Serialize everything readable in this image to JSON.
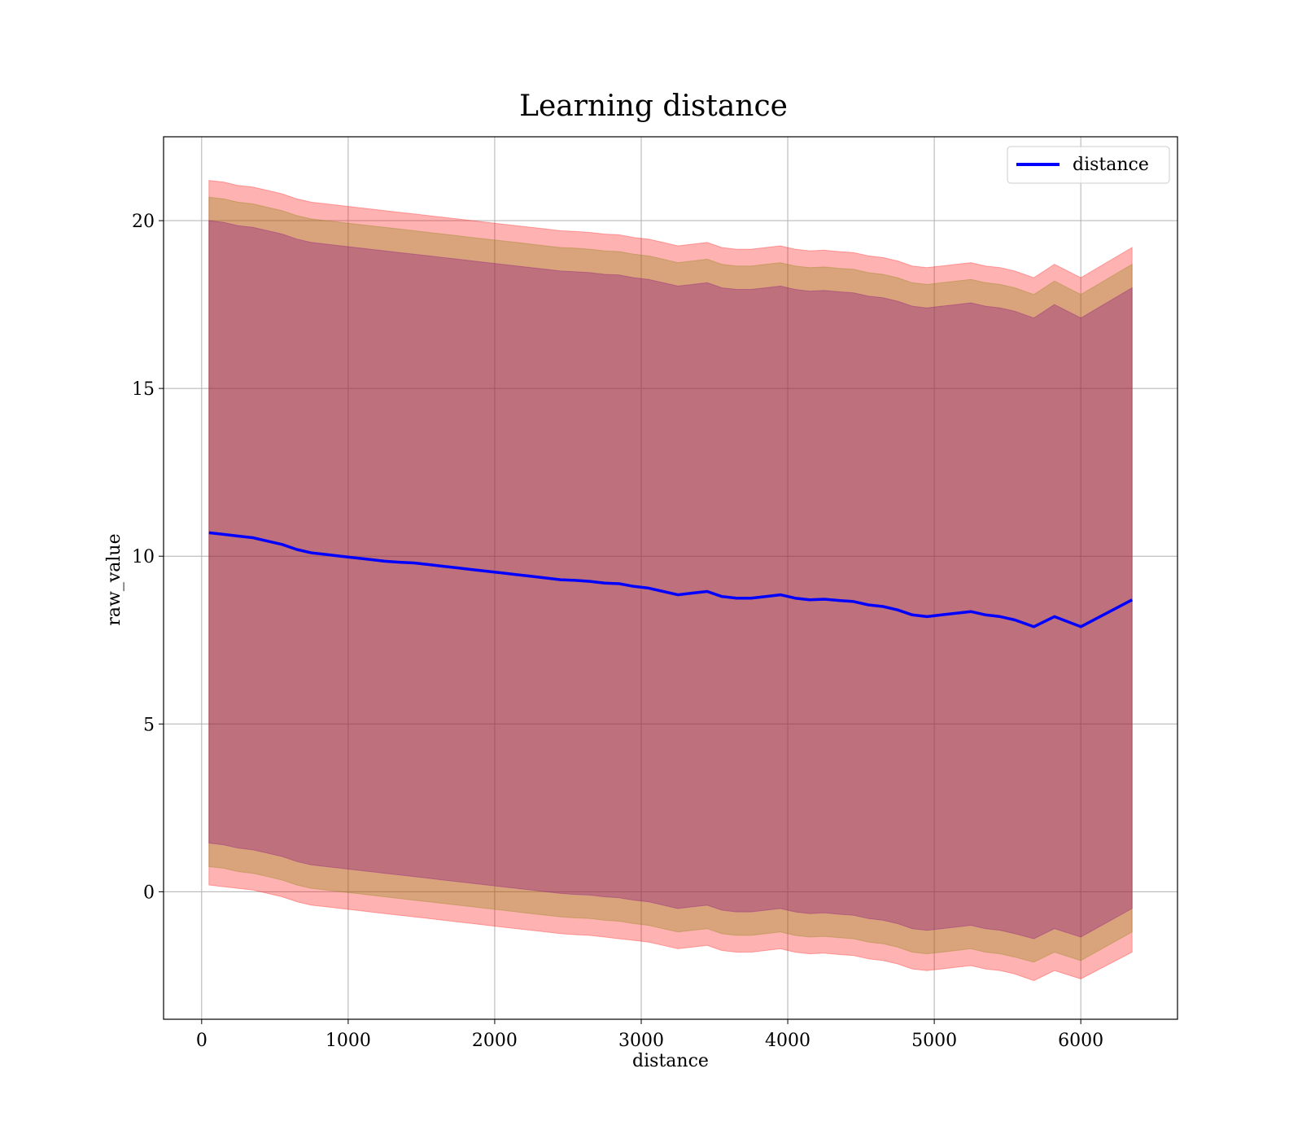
{
  "chart_data": {
    "type": "line",
    "title": "Learning distance",
    "xlabel": "distance",
    "ylabel": "raw_value",
    "xlim": [
      -260,
      6660
    ],
    "ylim": [
      -3.8,
      22.5
    ],
    "x_ticks": [
      0,
      1000,
      2000,
      3000,
      4000,
      5000,
      6000
    ],
    "y_ticks": [
      0,
      5,
      10,
      15,
      20
    ],
    "grid": true,
    "legend_position": "top-right",
    "series": [
      {
        "name": "distance",
        "color": "#0000ff",
        "x": [
          50,
          150,
          250,
          350,
          450,
          550,
          650,
          750,
          850,
          950,
          1050,
          1150,
          1250,
          1350,
          1450,
          1550,
          1650,
          1750,
          1850,
          1950,
          2050,
          2150,
          2250,
          2350,
          2450,
          2550,
          2650,
          2750,
          2850,
          2950,
          3050,
          3150,
          3250,
          3350,
          3450,
          3550,
          3650,
          3750,
          3850,
          3950,
          4050,
          4150,
          4250,
          4350,
          4450,
          4550,
          4650,
          4750,
          4850,
          4950,
          5050,
          5150,
          5250,
          5350,
          5450,
          5550,
          5680,
          5820,
          6000,
          6350
        ],
        "y": [
          10.7,
          10.65,
          10.6,
          10.55,
          10.45,
          10.35,
          10.2,
          10.1,
          10.05,
          10.0,
          9.95,
          9.9,
          9.85,
          9.82,
          9.8,
          9.75,
          9.7,
          9.65,
          9.6,
          9.55,
          9.5,
          9.45,
          9.4,
          9.35,
          9.3,
          9.28,
          9.25,
          9.2,
          9.18,
          9.1,
          9.05,
          8.95,
          8.85,
          8.9,
          8.95,
          8.8,
          8.75,
          8.75,
          8.8,
          8.85,
          8.75,
          8.7,
          8.72,
          8.68,
          8.65,
          8.55,
          8.5,
          8.4,
          8.25,
          8.2,
          8.25,
          8.3,
          8.35,
          8.25,
          8.2,
          8.1,
          7.9,
          8.2,
          7.9,
          8.7
        ]
      }
    ],
    "bands": [
      {
        "color": "#ff0000",
        "opacity": 0.3,
        "upper": [
          21.2,
          21.15,
          21.05,
          21.0,
          20.9,
          20.8,
          20.65,
          20.55,
          20.5,
          20.45,
          20.4,
          20.35,
          20.3,
          20.25,
          20.2,
          20.15,
          20.1,
          20.05,
          20.0,
          19.95,
          19.9,
          19.85,
          19.8,
          19.75,
          19.7,
          19.68,
          19.65,
          19.6,
          19.58,
          19.5,
          19.45,
          19.35,
          19.25,
          19.3,
          19.35,
          19.2,
          19.15,
          19.15,
          19.2,
          19.25,
          19.15,
          19.1,
          19.12,
          19.08,
          19.05,
          18.95,
          18.9,
          18.8,
          18.65,
          18.6,
          18.65,
          18.7,
          18.75,
          18.65,
          18.6,
          18.5,
          18.3,
          18.7,
          18.3,
          19.2
        ],
        "lower": [
          0.2,
          0.15,
          0.1,
          0.05,
          -0.05,
          -0.15,
          -0.3,
          -0.4,
          -0.45,
          -0.5,
          -0.55,
          -0.6,
          -0.65,
          -0.7,
          -0.75,
          -0.8,
          -0.85,
          -0.9,
          -0.95,
          -1.0,
          -1.05,
          -1.1,
          -1.15,
          -1.2,
          -1.25,
          -1.28,
          -1.3,
          -1.35,
          -1.4,
          -1.45,
          -1.5,
          -1.6,
          -1.7,
          -1.65,
          -1.6,
          -1.75,
          -1.8,
          -1.8,
          -1.75,
          -1.7,
          -1.8,
          -1.85,
          -1.83,
          -1.87,
          -1.9,
          -2.0,
          -2.05,
          -2.15,
          -2.3,
          -2.35,
          -2.3,
          -2.25,
          -2.2,
          -2.3,
          -2.35,
          -2.45,
          -2.65,
          -2.35,
          -2.6,
          -1.8
        ]
      },
      {
        "color": "#808000",
        "opacity": 0.3,
        "upper": [
          20.7,
          20.65,
          20.55,
          20.5,
          20.4,
          20.3,
          20.15,
          20.05,
          20.0,
          19.95,
          19.9,
          19.85,
          19.8,
          19.75,
          19.7,
          19.65,
          19.6,
          19.55,
          19.5,
          19.45,
          19.4,
          19.35,
          19.3,
          19.25,
          19.2,
          19.18,
          19.15,
          19.1,
          19.08,
          19.0,
          18.95,
          18.85,
          18.75,
          18.8,
          18.85,
          18.7,
          18.65,
          18.65,
          18.7,
          18.75,
          18.65,
          18.6,
          18.62,
          18.58,
          18.55,
          18.45,
          18.4,
          18.3,
          18.15,
          18.1,
          18.15,
          18.2,
          18.25,
          18.15,
          18.1,
          18.0,
          17.8,
          18.2,
          17.8,
          18.7
        ],
        "lower": [
          0.75,
          0.7,
          0.6,
          0.55,
          0.45,
          0.35,
          0.2,
          0.1,
          0.05,
          0.0,
          -0.05,
          -0.1,
          -0.15,
          -0.2,
          -0.25,
          -0.3,
          -0.35,
          -0.4,
          -0.45,
          -0.5,
          -0.55,
          -0.6,
          -0.65,
          -0.7,
          -0.75,
          -0.78,
          -0.8,
          -0.85,
          -0.88,
          -0.95,
          -1.0,
          -1.1,
          -1.2,
          -1.15,
          -1.1,
          -1.25,
          -1.3,
          -1.3,
          -1.25,
          -1.2,
          -1.3,
          -1.35,
          -1.33,
          -1.37,
          -1.4,
          -1.5,
          -1.55,
          -1.65,
          -1.8,
          -1.85,
          -1.8,
          -1.75,
          -1.7,
          -1.8,
          -1.85,
          -1.95,
          -2.1,
          -1.8,
          -2.05,
          -1.2
        ]
      },
      {
        "color": "#800080",
        "opacity": 0.3,
        "upper": [
          20.0,
          19.95,
          19.85,
          19.8,
          19.7,
          19.6,
          19.45,
          19.35,
          19.3,
          19.25,
          19.2,
          19.15,
          19.1,
          19.05,
          19.0,
          18.95,
          18.9,
          18.85,
          18.8,
          18.75,
          18.7,
          18.65,
          18.6,
          18.55,
          18.5,
          18.48,
          18.45,
          18.4,
          18.38,
          18.3,
          18.25,
          18.15,
          18.05,
          18.1,
          18.15,
          18.0,
          17.95,
          17.95,
          18.0,
          18.05,
          17.95,
          17.9,
          17.92,
          17.88,
          17.85,
          17.75,
          17.7,
          17.6,
          17.45,
          17.4,
          17.45,
          17.5,
          17.55,
          17.45,
          17.4,
          17.3,
          17.1,
          17.5,
          17.1,
          18.0
        ],
        "lower": [
          1.45,
          1.4,
          1.3,
          1.25,
          1.15,
          1.05,
          0.9,
          0.8,
          0.75,
          0.7,
          0.65,
          0.6,
          0.55,
          0.5,
          0.45,
          0.4,
          0.35,
          0.3,
          0.25,
          0.2,
          0.15,
          0.1,
          0.05,
          0.0,
          -0.05,
          -0.08,
          -0.1,
          -0.15,
          -0.18,
          -0.25,
          -0.3,
          -0.4,
          -0.5,
          -0.45,
          -0.4,
          -0.55,
          -0.6,
          -0.6,
          -0.55,
          -0.5,
          -0.6,
          -0.65,
          -0.63,
          -0.67,
          -0.7,
          -0.8,
          -0.85,
          -0.95,
          -1.1,
          -1.15,
          -1.1,
          -1.05,
          -1.0,
          -1.1,
          -1.15,
          -1.25,
          -1.4,
          -1.1,
          -1.35,
          -0.5
        ]
      }
    ]
  }
}
